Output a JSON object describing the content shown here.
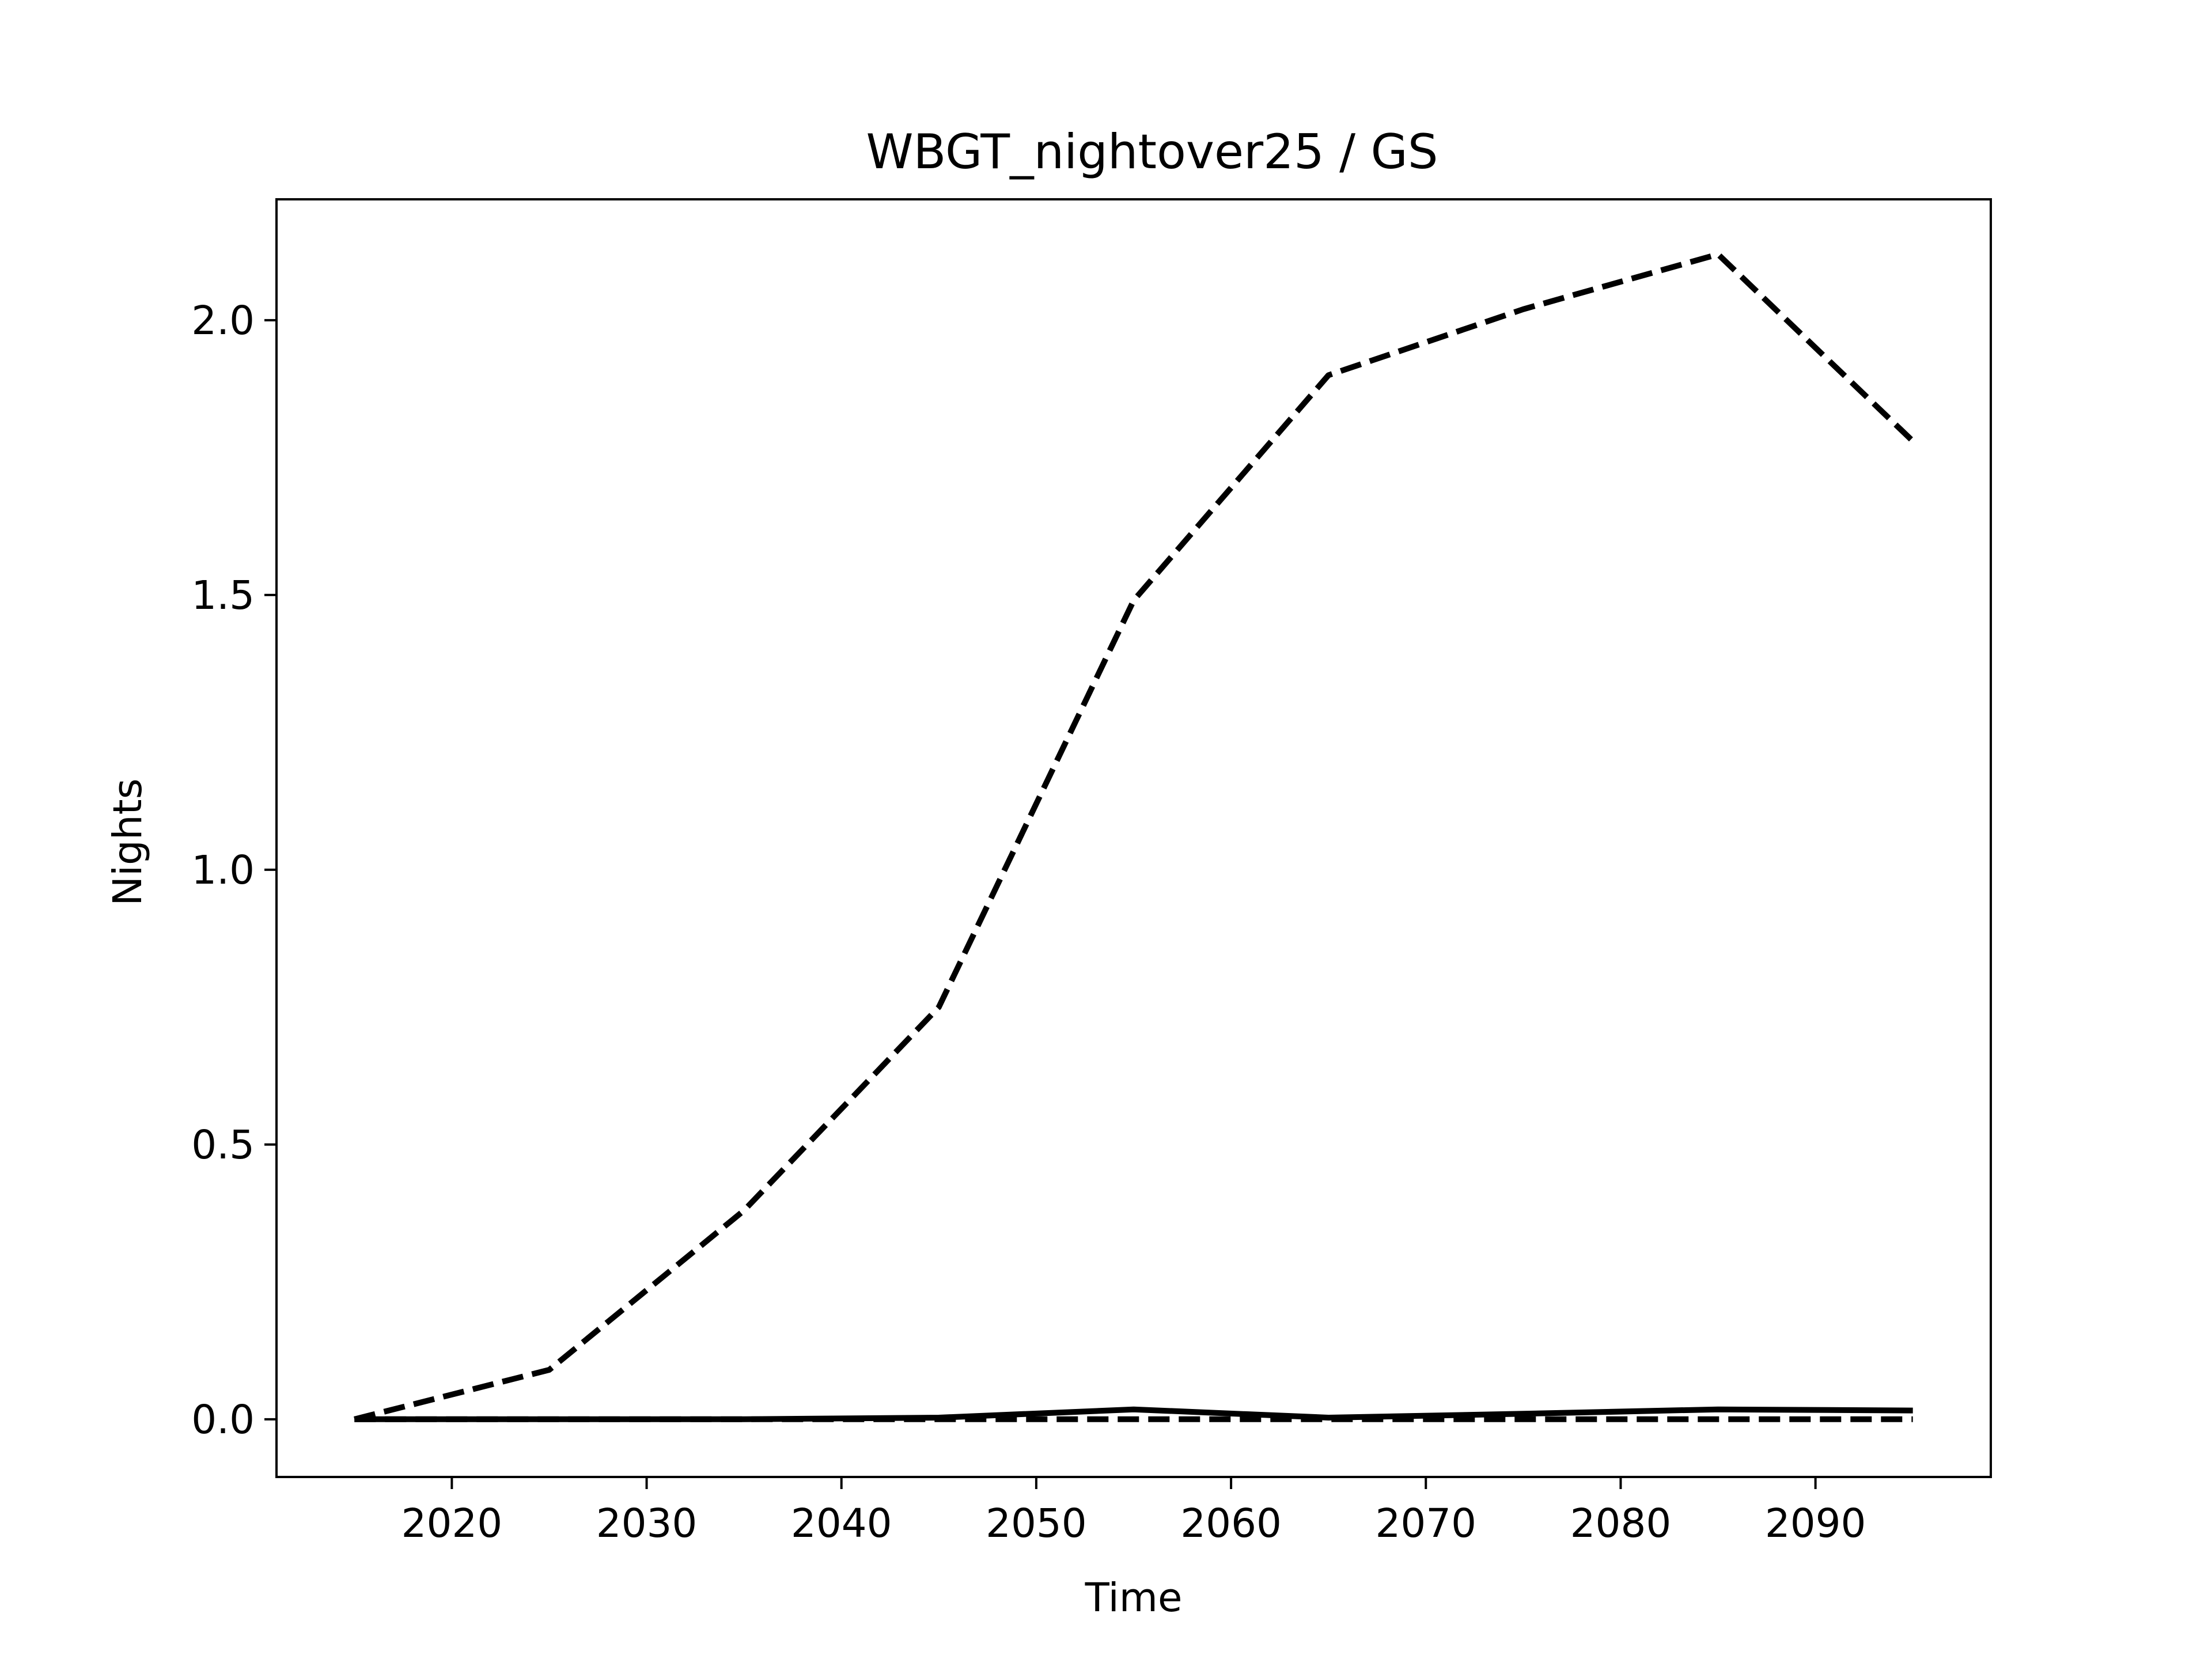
{
  "chart_data": {
    "type": "line",
    "title": "WBGT_nightover25 / GS",
    "xlabel": "Time",
    "ylabel": "Nights",
    "xlim": [
      2011,
      2099
    ],
    "ylim": [
      -0.105,
      2.22
    ],
    "x_ticks": [
      2020,
      2030,
      2040,
      2050,
      2060,
      2070,
      2080,
      2090
    ],
    "y_ticks": [
      0.0,
      0.5,
      1.0,
      1.5,
      2.0
    ],
    "x_tick_labels": [
      "2020",
      "2030",
      "2040",
      "2050",
      "2060",
      "2070",
      "2080",
      "2090"
    ],
    "y_tick_labels": [
      "0.0",
      "0.5",
      "1.0",
      "1.5",
      "2.0"
    ],
    "grid": false,
    "x": [
      2015,
      2025,
      2035,
      2045,
      2055,
      2065,
      2075,
      2085,
      2095
    ],
    "series": [
      {
        "style": "dashed",
        "color": "#000000",
        "values": [
          0.0,
          0.09,
          0.38,
          0.75,
          1.49,
          1.9,
          2.02,
          2.12,
          1.78
        ]
      },
      {
        "style": "solid",
        "color": "#000000",
        "values": [
          0.0,
          0.0,
          0.0,
          0.003,
          0.018,
          0.003,
          0.01,
          0.018,
          0.016
        ]
      },
      {
        "style": "dashed",
        "color": "#000000",
        "values": [
          0.0,
          0.0,
          0.0,
          0.0,
          0.0,
          0.0,
          0.0,
          0.0,
          0.0
        ]
      }
    ]
  }
}
